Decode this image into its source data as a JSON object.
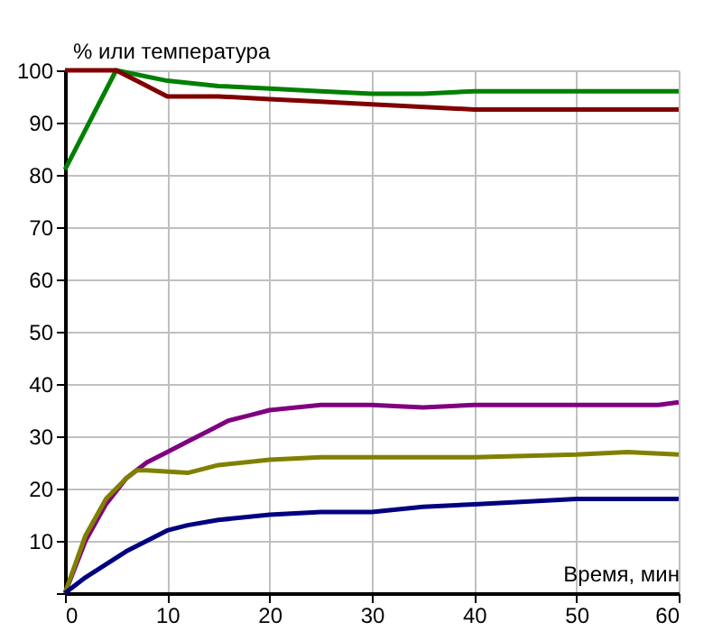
{
  "chart_data": {
    "type": "line",
    "xlabel": "Время, мин",
    "ylabel": "% или температура",
    "xlim": [
      0,
      60
    ],
    "xticks": [
      0,
      10,
      20,
      30,
      40,
      50,
      60
    ],
    "ylim": [
      0,
      100
    ],
    "yticks": [
      {
        "value": 0,
        "label": null
      },
      10,
      20,
      30,
      40,
      50,
      60,
      70,
      80,
      90,
      100
    ],
    "grid": true,
    "legend": false,
    "marker": "none",
    "line_style": "solid",
    "series": [
      {
        "color": "#008000",
        "x": [
          0,
          5,
          10,
          15,
          20,
          25,
          30,
          35,
          40,
          50,
          60
        ],
        "values": [
          81,
          100,
          98,
          97,
          96.5,
          96,
          95.5,
          95.5,
          96,
          96,
          96
        ]
      },
      {
        "color": "#800000",
        "x": [
          0,
          5,
          7,
          10,
          15,
          20,
          25,
          30,
          40,
          50,
          60
        ],
        "values": [
          100,
          100,
          98,
          95,
          95,
          94.5,
          94,
          93.5,
          92.5,
          92.5,
          92.5
        ]
      },
      {
        "color": "#800080",
        "x": [
          0,
          2,
          4,
          6,
          8,
          10,
          12,
          14,
          16,
          18,
          20,
          25,
          30,
          35,
          40,
          50,
          58,
          60
        ],
        "values": [
          0,
          10,
          17,
          22,
          25,
          27,
          29,
          31,
          33,
          34,
          35,
          36,
          36,
          35.5,
          36,
          36,
          36,
          36.5
        ]
      },
      {
        "color": "#808000",
        "x": [
          0,
          2,
          4,
          6,
          7,
          8,
          12,
          15,
          20,
          25,
          35,
          40,
          50,
          55,
          60
        ],
        "values": [
          0,
          11,
          18,
          22,
          23.5,
          23.5,
          23,
          24.5,
          25.5,
          26,
          26,
          26,
          26.5,
          27,
          26.5
        ]
      },
      {
        "color": "#000080",
        "x": [
          0,
          2,
          4,
          6,
          8,
          10,
          12,
          15,
          20,
          25,
          30,
          35,
          40,
          45,
          50,
          60
        ],
        "values": [
          0,
          3,
          5.5,
          8,
          10,
          12,
          13,
          14,
          15,
          15.5,
          15.5,
          16.5,
          17,
          17.5,
          18,
          18
        ]
      }
    ]
  }
}
